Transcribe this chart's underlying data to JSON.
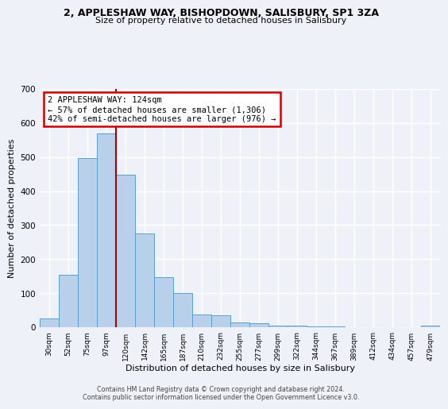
{
  "title1": "2, APPLESHAW WAY, BISHOPDOWN, SALISBURY, SP1 3ZA",
  "title2": "Size of property relative to detached houses in Salisbury",
  "xlabel": "Distribution of detached houses by size in Salisbury",
  "ylabel": "Number of detached properties",
  "bar_labels": [
    "30sqm",
    "52sqm",
    "75sqm",
    "97sqm",
    "120sqm",
    "142sqm",
    "165sqm",
    "187sqm",
    "210sqm",
    "232sqm",
    "255sqm",
    "277sqm",
    "299sqm",
    "322sqm",
    "344sqm",
    "367sqm",
    "389sqm",
    "412sqm",
    "434sqm",
    "457sqm",
    "479sqm"
  ],
  "bar_values": [
    25,
    155,
    497,
    570,
    448,
    275,
    146,
    100,
    37,
    35,
    14,
    11,
    5,
    5,
    2,
    2,
    0,
    0,
    0,
    0,
    5
  ],
  "bar_color": "#b8d0ea",
  "bar_edge_color": "#5a9fd4",
  "vline_x": 3.5,
  "vline_color": "#aa0000",
  "annotation_title": "2 APPLESHAW WAY: 124sqm",
  "annotation_line1": "← 57% of detached houses are smaller (1,306)",
  "annotation_line2": "42% of semi-detached houses are larger (976) →",
  "annotation_box_color": "#ffffff",
  "annotation_box_edge": "#cc0000",
  "ylim": [
    0,
    700
  ],
  "yticks": [
    0,
    100,
    200,
    300,
    400,
    500,
    600,
    700
  ],
  "footer1": "Contains HM Land Registry data © Crown copyright and database right 2024.",
  "footer2": "Contains public sector information licensed under the Open Government Licence v3.0.",
  "bg_color": "#eef2f8"
}
